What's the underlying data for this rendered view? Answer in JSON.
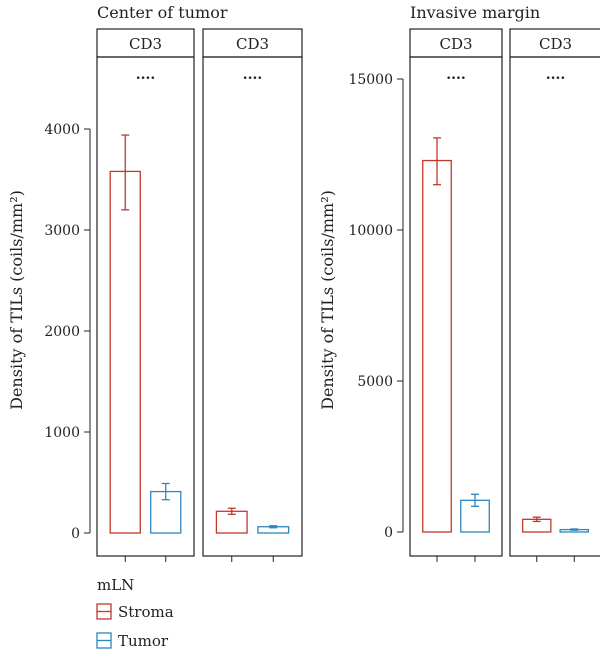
{
  "chart_data": [
    {
      "type": "bar",
      "title": "Center of tumor",
      "ylabel": "Density of TILs (coils/mm²)",
      "ylim": [
        0,
        4500
      ],
      "yticks": [
        0,
        1000,
        2000,
        3000,
        4000
      ],
      "series_names": [
        "Stroma",
        "Tumor"
      ],
      "panels": [
        {
          "strip": "CD3",
          "significance": "....",
          "bars": [
            {
              "series": "Stroma",
              "value": 3580,
              "err_low": 3200,
              "err_high": 3940
            },
            {
              "series": "Tumor",
              "value": 410,
              "err_low": 330,
              "err_high": 490
            }
          ]
        },
        {
          "strip": "CD3",
          "significance": "....",
          "bars": [
            {
              "series": "Stroma",
              "value": 215,
              "err_low": 185,
              "err_high": 245
            },
            {
              "series": "Tumor",
              "value": 62,
              "err_low": 52,
              "err_high": 72
            }
          ]
        }
      ]
    },
    {
      "type": "bar",
      "title": "Invasive margin",
      "ylabel": "Density of TILs (coils/mm²)",
      "ylim": [
        0,
        16500
      ],
      "yticks": [
        0,
        5000,
        10000,
        15000
      ],
      "series_names": [
        "Stroma",
        "Tumor"
      ],
      "panels": [
        {
          "strip": "CD3",
          "significance": "....",
          "bars": [
            {
              "series": "Stroma",
              "value": 12300,
              "err_low": 11500,
              "err_high": 13050
            },
            {
              "series": "Tumor",
              "value": 1050,
              "err_low": 850,
              "err_high": 1250
            }
          ]
        },
        {
          "strip": "CD3",
          "significance": "....",
          "bars": [
            {
              "series": "Stroma",
              "value": 420,
              "err_low": 350,
              "err_high": 490
            },
            {
              "series": "Tumor",
              "value": 80,
              "err_low": 60,
              "err_high": 100
            }
          ]
        }
      ]
    }
  ],
  "legend": {
    "title": "mLN",
    "items": [
      {
        "label": "Stroma",
        "color": "#c0392b"
      },
      {
        "label": "Tumor",
        "color": "#2e86c1"
      }
    ]
  },
  "colors": {
    "Stroma": "#c0392b",
    "Tumor": "#2e86c1",
    "axis": "#222222"
  }
}
